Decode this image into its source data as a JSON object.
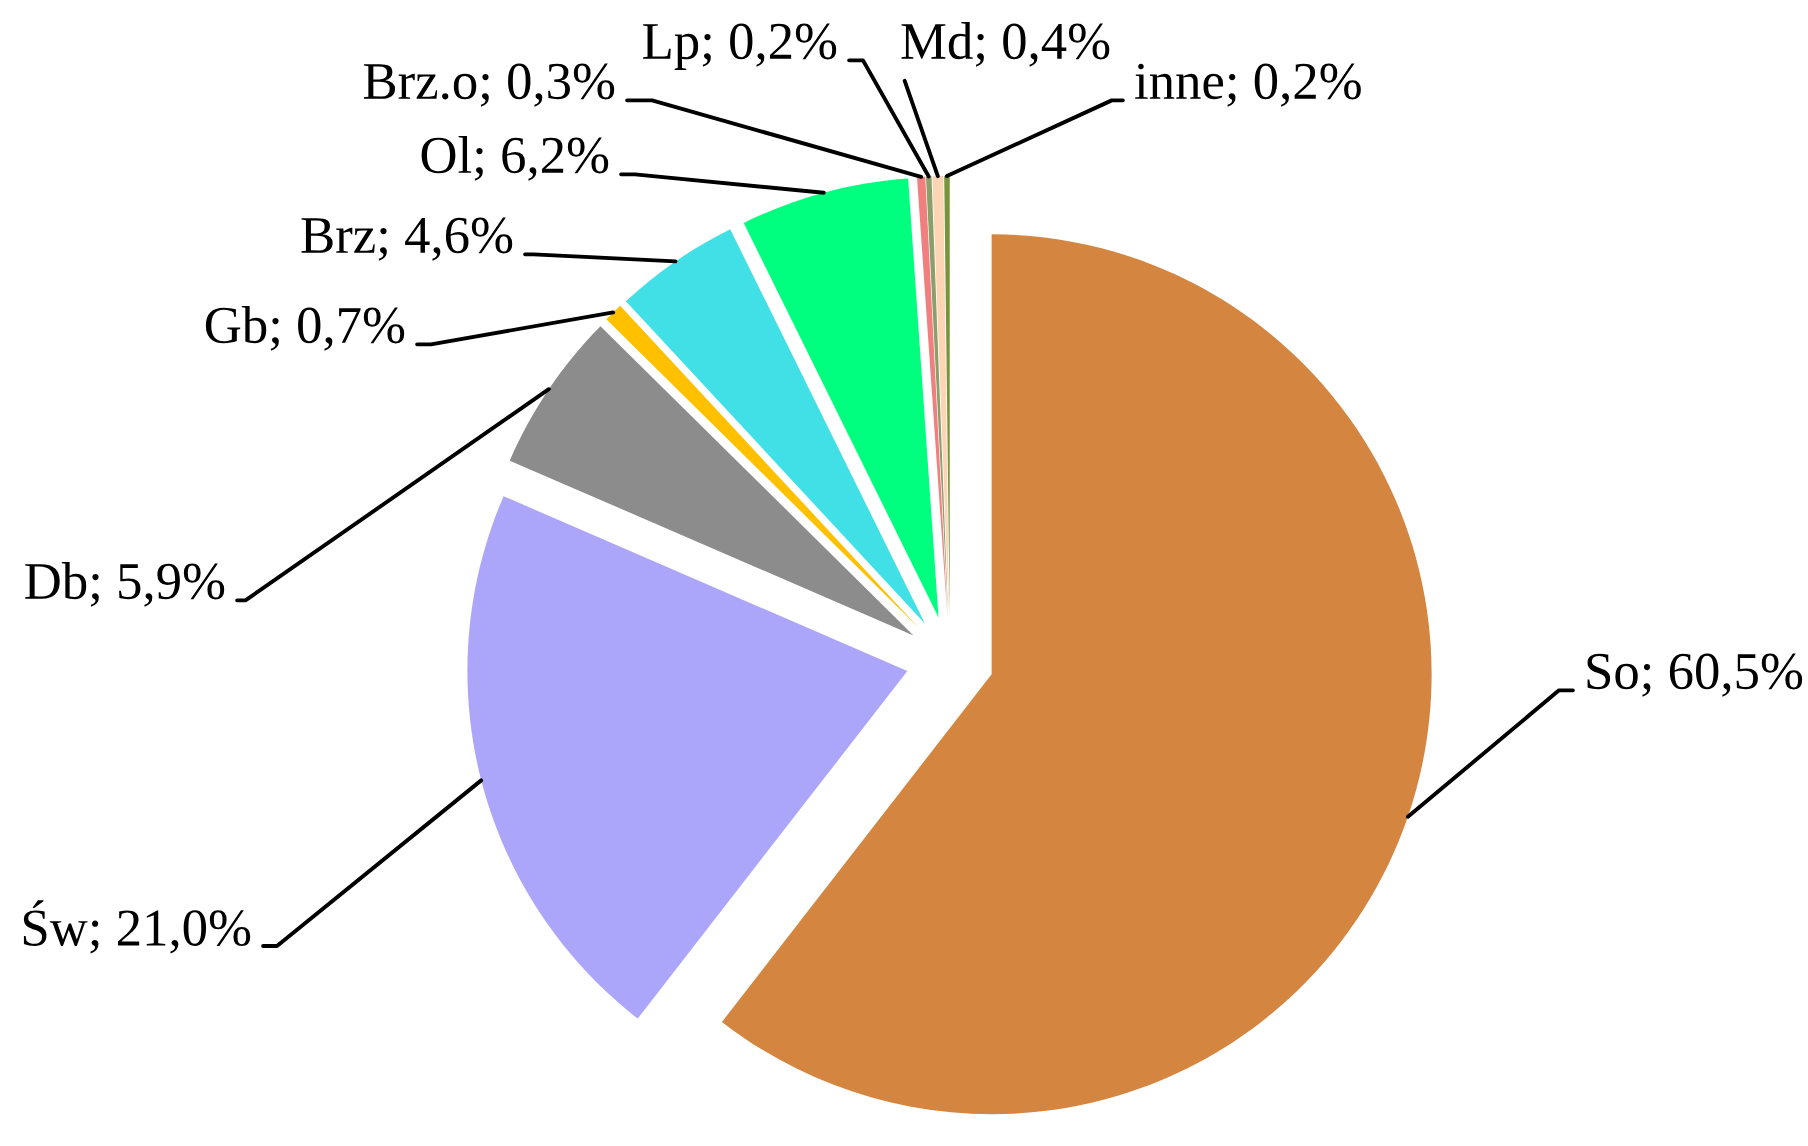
{
  "chart_data": {
    "type": "pie",
    "categories": [
      "So",
      "Św",
      "Db",
      "Gb",
      "Brz",
      "Ol",
      "Brz.o",
      "Lp",
      "Md",
      "inne"
    ],
    "values": [
      60.5,
      21.0,
      5.9,
      0.7,
      4.6,
      6.2,
      0.3,
      0.2,
      0.4,
      0.2
    ],
    "value_labels": [
      "60,5%",
      "21,0%",
      "5,9%",
      "0,7%",
      "4,6%",
      "6,2%",
      "0,3%",
      "0,2%",
      "0,4%",
      "0,2%"
    ],
    "colors": [
      "#d4853f",
      "#aca6fa",
      "#8c8c8c",
      "#ffc000",
      "#40e0e6",
      "#00ff7f",
      "#f08080",
      "#8c9f6a",
      "#fcd5b4",
      "#77933c"
    ]
  }
}
